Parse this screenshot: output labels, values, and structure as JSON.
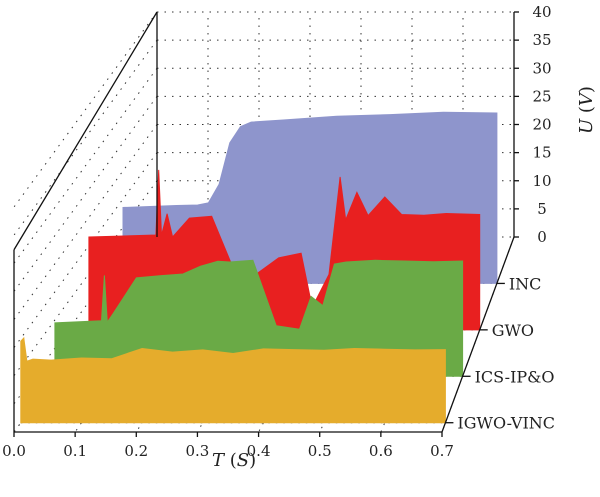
{
  "chart_data": {
    "type": "area",
    "projection": "3d-waterfall",
    "x_axis": {
      "label": "T",
      "unit": "S",
      "range": [
        0,
        0.7
      ],
      "ticks": [
        "0.0",
        "0.1",
        "0.2",
        "0.3",
        "0.4",
        "0.5",
        "0.6",
        "0.7"
      ]
    },
    "z_axis": {
      "label": "U",
      "unit": "V",
      "range": [
        0,
        40
      ],
      "ticks": [
        "0",
        "5",
        "10",
        "15",
        "20",
        "25",
        "30",
        "35",
        "40"
      ]
    },
    "series": [
      {
        "name": "INC",
        "color": "#8e95cc",
        "x": [
          0.0,
          0.1,
          0.14,
          0.16,
          0.18,
          0.2,
          0.22,
          0.24,
          0.3,
          0.4,
          0.5,
          0.6,
          0.7
        ],
        "y": [
          13.5,
          13.8,
          14.0,
          14.5,
          17.5,
          25.0,
          28.0,
          28.5,
          29.0,
          29.8,
          30.2,
          30.3,
          30.3
        ]
      },
      {
        "name": "GWO",
        "color": "#e82020",
        "x": [
          0.0,
          0.12,
          0.125,
          0.13,
          0.14,
          0.15,
          0.18,
          0.22,
          0.26,
          0.3,
          0.34,
          0.38,
          0.4,
          0.43,
          0.45,
          0.46,
          0.48,
          0.5,
          0.53,
          0.56,
          0.6,
          0.64,
          0.7
        ],
        "y": [
          16.5,
          16.8,
          28.5,
          17.0,
          20.5,
          16.5,
          20.0,
          20.0,
          10.5,
          10.0,
          13.0,
          13.5,
          4.0,
          10.0,
          27.0,
          19.5,
          24.5,
          20.5,
          23.5,
          20.5,
          20.5,
          20.5,
          20.5
        ]
      },
      {
        "name": "ICS-IP&O",
        "color": "#6aaa46",
        "x": [
          0.0,
          0.08,
          0.085,
          0.09,
          0.1,
          0.14,
          0.18,
          0.22,
          0.25,
          0.28,
          0.3,
          0.34,
          0.38,
          0.42,
          0.44,
          0.46,
          0.48,
          0.5,
          0.55,
          0.6,
          0.65,
          0.7
        ],
        "y": [
          9.5,
          9.8,
          18.0,
          9.8,
          11.0,
          17.5,
          18.0,
          18.0,
          19.5,
          20.5,
          20.5,
          20.5,
          9.0,
          8.5,
          14.0,
          12.5,
          20.0,
          20.5,
          20.5,
          20.5,
          20.5,
          20.5
        ]
      },
      {
        "name": "IGWO-VINC",
        "color": "#e5ac2c",
        "x": [
          0.0,
          0.005,
          0.01,
          0.02,
          0.05,
          0.1,
          0.15,
          0.2,
          0.25,
          0.3,
          0.35,
          0.4,
          0.45,
          0.5,
          0.55,
          0.6,
          0.65,
          0.7
        ],
        "y": [
          14.5,
          15.0,
          11.0,
          11.5,
          11.0,
          11.5,
          11.5,
          13.0,
          12.5,
          13.0,
          12.5,
          13.0,
          13.0,
          13.0,
          13.0,
          13.0,
          13.0,
          13.0
        ]
      }
    ],
    "grid": true,
    "legend": "series labels along depth axis (right)"
  }
}
